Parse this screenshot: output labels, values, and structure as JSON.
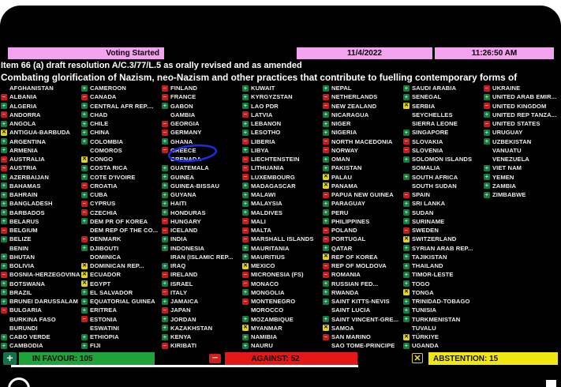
{
  "header": {
    "status": "Voting Started",
    "date": "11/4/2022",
    "time": "11:26:50 AM",
    "item_line": "Item 66 (a) draft resolution A/C.3/77/L.5 as orally revised and as amended",
    "title_line": "Combating glorification of Nazism, neo-Nazism and other practices that contribute to fuelling contemporary forms of"
  },
  "annotation": {
    "circled_country": "GREECE",
    "color": "#1c2be0"
  },
  "summary": {
    "in_favour_label": "IN FAVOUR: 105",
    "against_label": "AGAINST: 52",
    "abstention_label": "ABSTENTION: 15",
    "in_favour_count": 105,
    "against_count": 52,
    "abstention_count": 15,
    "plus_glyph": "+",
    "minus_glyph": "−",
    "cross_glyph": "✕"
  },
  "colors": {
    "topbar_pink": "#f2a3ee",
    "favour_green": "#1fa339",
    "against_red": "#e51717",
    "abstain_yellow": "#f0e612",
    "mark_green": "#157a40",
    "mark_red": "#c11d1d",
    "mark_yellow": "#e3d416"
  },
  "votes": {
    "legend": {
      "Y": "in favour",
      "N": "against",
      "A": "abstention",
      "": "not voting"
    },
    "columns": [
      [
        {
          "name": "AFGHANISTAN",
          "vote": ""
        },
        {
          "name": "ALBANIA",
          "vote": "N"
        },
        {
          "name": "ALGERIA",
          "vote": "Y"
        },
        {
          "name": "ANDORRA",
          "vote": "N"
        },
        {
          "name": "ANGOLA",
          "vote": "Y"
        },
        {
          "name": "ANTIGUA-BARBUDA",
          "vote": "A"
        },
        {
          "name": "ARGENTINA",
          "vote": "Y"
        },
        {
          "name": "ARMENIA",
          "vote": "Y"
        },
        {
          "name": "AUSTRALIA",
          "vote": "N"
        },
        {
          "name": "AUSTRIA",
          "vote": "N"
        },
        {
          "name": "AZERBAIJAN",
          "vote": "Y"
        },
        {
          "name": "BAHAMAS",
          "vote": "Y"
        },
        {
          "name": "BAHRAIN",
          "vote": "Y"
        },
        {
          "name": "BANGLADESH",
          "vote": "Y"
        },
        {
          "name": "BARBADOS",
          "vote": "Y"
        },
        {
          "name": "BELARUS",
          "vote": "Y"
        },
        {
          "name": "BELGIUM",
          "vote": "N"
        },
        {
          "name": "BELIZE",
          "vote": "Y"
        },
        {
          "name": "BENIN",
          "vote": ""
        },
        {
          "name": "BHUTAN",
          "vote": "Y"
        },
        {
          "name": "BOLIVIA",
          "vote": "Y"
        },
        {
          "name": "BOSNIA-HERZEGOVINA",
          "vote": "N"
        },
        {
          "name": "BOTSWANA",
          "vote": "Y"
        },
        {
          "name": "BRAZIL",
          "vote": "Y"
        },
        {
          "name": "BRUNEI DARUSSALAM",
          "vote": "Y"
        },
        {
          "name": "BULGARIA",
          "vote": "N"
        },
        {
          "name": "BURKINA FASO",
          "vote": ""
        },
        {
          "name": "BURUNDI",
          "vote": ""
        },
        {
          "name": "CABO VERDE",
          "vote": "Y"
        },
        {
          "name": "CAMBODIA",
          "vote": "Y"
        }
      ],
      [
        {
          "name": "CAMEROON",
          "vote": "Y"
        },
        {
          "name": "CANADA",
          "vote": "N"
        },
        {
          "name": "CENTRAL AFR REP....",
          "vote": "Y"
        },
        {
          "name": "CHAD",
          "vote": "Y"
        },
        {
          "name": "CHILE",
          "vote": "Y"
        },
        {
          "name": "CHINA",
          "vote": "Y"
        },
        {
          "name": "COLOMBIA",
          "vote": "Y"
        },
        {
          "name": "COMOROS",
          "vote": ""
        },
        {
          "name": "CONGO",
          "vote": "A"
        },
        {
          "name": "COSTA RICA",
          "vote": "Y"
        },
        {
          "name": "COTE D'IVOIRE",
          "vote": "Y"
        },
        {
          "name": "CROATIA",
          "vote": "N"
        },
        {
          "name": "CUBA",
          "vote": "Y"
        },
        {
          "name": "CYPRUS",
          "vote": "N"
        },
        {
          "name": "CZECHIA",
          "vote": "N"
        },
        {
          "name": "DEM PR OF KOREA",
          "vote": "Y"
        },
        {
          "name": "DEM REP OF THE CO...",
          "vote": ""
        },
        {
          "name": "DENMARK",
          "vote": "N"
        },
        {
          "name": "DJIBOUTI",
          "vote": "Y"
        },
        {
          "name": "DOMINICA",
          "vote": ""
        },
        {
          "name": "DOMINICAN REP...",
          "vote": "A"
        },
        {
          "name": "ECUADOR",
          "vote": "A"
        },
        {
          "name": "EGYPT",
          "vote": "A"
        },
        {
          "name": "EL SALVADOR",
          "vote": "Y"
        },
        {
          "name": "EQUATORIAL GUINEA",
          "vote": "Y"
        },
        {
          "name": "ERITREA",
          "vote": "Y"
        },
        {
          "name": "ESTONIA",
          "vote": "N"
        },
        {
          "name": "ESWATINI",
          "vote": ""
        },
        {
          "name": "ETHIOPIA",
          "vote": "Y"
        },
        {
          "name": "FIJI",
          "vote": "Y"
        }
      ],
      [
        {
          "name": "FINLAND",
          "vote": "N"
        },
        {
          "name": "FRANCE",
          "vote": "N"
        },
        {
          "name": "GABON",
          "vote": "Y"
        },
        {
          "name": "GAMBIA",
          "vote": ""
        },
        {
          "name": "GEORGIA",
          "vote": "N"
        },
        {
          "name": "GERMANY",
          "vote": "N"
        },
        {
          "name": "GHANA",
          "vote": "Y"
        },
        {
          "name": "GREECE",
          "vote": "N"
        },
        {
          "name": "GRENADA",
          "vote": ""
        },
        {
          "name": "GUATEMALA",
          "vote": "Y"
        },
        {
          "name": "GUINEA",
          "vote": "Y"
        },
        {
          "name": "GUINEA-BISSAU",
          "vote": "Y"
        },
        {
          "name": "GUYANA",
          "vote": "Y"
        },
        {
          "name": "HAITI",
          "vote": "Y"
        },
        {
          "name": "HONDURAS",
          "vote": "Y"
        },
        {
          "name": "HUNGARY",
          "vote": "N"
        },
        {
          "name": "ICELAND",
          "vote": "N"
        },
        {
          "name": "INDIA",
          "vote": "Y"
        },
        {
          "name": "INDONESIA",
          "vote": "Y"
        },
        {
          "name": "IRAN (ISLAMIC REP...",
          "vote": ""
        },
        {
          "name": "IRAQ",
          "vote": "Y"
        },
        {
          "name": "IRELAND",
          "vote": "N"
        },
        {
          "name": "ISRAEL",
          "vote": "Y"
        },
        {
          "name": "ITALY",
          "vote": "N"
        },
        {
          "name": "JAMAICA",
          "vote": "Y"
        },
        {
          "name": "JAPAN",
          "vote": "N"
        },
        {
          "name": "JORDAN",
          "vote": "Y"
        },
        {
          "name": "KAZAKHSTAN",
          "vote": "Y"
        },
        {
          "name": "KENYA",
          "vote": "Y"
        },
        {
          "name": "KIRIBATI",
          "vote": "N"
        }
      ],
      [
        {
          "name": "KUWAIT",
          "vote": "Y"
        },
        {
          "name": "KYRGYZSTAN",
          "vote": "Y"
        },
        {
          "name": "LAO PDR",
          "vote": "Y"
        },
        {
          "name": "LATVIA",
          "vote": "N"
        },
        {
          "name": "LEBANON",
          "vote": "Y"
        },
        {
          "name": "LESOTHO",
          "vote": "Y"
        },
        {
          "name": "LIBERIA",
          "vote": "N"
        },
        {
          "name": "LIBYA",
          "vote": "Y"
        },
        {
          "name": "LIECHTENSTEIN",
          "vote": "N"
        },
        {
          "name": "LITHUANIA",
          "vote": "N"
        },
        {
          "name": "LUXEMBOURG",
          "vote": "N"
        },
        {
          "name": "MADAGASCAR",
          "vote": "Y"
        },
        {
          "name": "MALAWI",
          "vote": "Y"
        },
        {
          "name": "MALAYSIA",
          "vote": "Y"
        },
        {
          "name": "MALDIVES",
          "vote": "Y"
        },
        {
          "name": "MALI",
          "vote": "N"
        },
        {
          "name": "MALTA",
          "vote": "N"
        },
        {
          "name": "MARSHALL ISLANDS",
          "vote": "N"
        },
        {
          "name": "MAURITANIA",
          "vote": "Y"
        },
        {
          "name": "MAURITIUS",
          "vote": "Y"
        },
        {
          "name": "MEXICO",
          "vote": "A"
        },
        {
          "name": "MICRONESIA (FS)",
          "vote": "N"
        },
        {
          "name": "MONACO",
          "vote": "N"
        },
        {
          "name": "MONGOLIA",
          "vote": "Y"
        },
        {
          "name": "MONTENEGRO",
          "vote": "N"
        },
        {
          "name": "MOROCCO",
          "vote": ""
        },
        {
          "name": "MOZAMBIQUE",
          "vote": "Y"
        },
        {
          "name": "MYANMAR",
          "vote": "A"
        },
        {
          "name": "NAMIBIA",
          "vote": "Y"
        },
        {
          "name": "NAURU",
          "vote": "Y"
        }
      ],
      [
        {
          "name": "NEPAL",
          "vote": "Y"
        },
        {
          "name": "NETHERLANDS",
          "vote": "N"
        },
        {
          "name": "NEW ZEALAND",
          "vote": "N"
        },
        {
          "name": "NICARAGUA",
          "vote": "Y"
        },
        {
          "name": "NIGER",
          "vote": "Y"
        },
        {
          "name": "NIGERIA",
          "vote": "Y"
        },
        {
          "name": "NORTH MACEDONIA",
          "vote": "N"
        },
        {
          "name": "NORWAY",
          "vote": "N"
        },
        {
          "name": "OMAN",
          "vote": "Y"
        },
        {
          "name": "PAKISTAN",
          "vote": "Y"
        },
        {
          "name": "PALAU",
          "vote": "A"
        },
        {
          "name": "PANAMA",
          "vote": "A"
        },
        {
          "name": "PAPUA NEW GUINEA",
          "vote": "N"
        },
        {
          "name": "PARAGUAY",
          "vote": "Y"
        },
        {
          "name": "PERU",
          "vote": "Y"
        },
        {
          "name": "PHILIPPINES",
          "vote": "Y"
        },
        {
          "name": "POLAND",
          "vote": "N"
        },
        {
          "name": "PORTUGAL",
          "vote": "N"
        },
        {
          "name": "QATAR",
          "vote": "Y"
        },
        {
          "name": "REP OF KOREA",
          "vote": "A"
        },
        {
          "name": "REP OF MOLDOVA",
          "vote": "N"
        },
        {
          "name": "ROMANIA",
          "vote": "N"
        },
        {
          "name": "RUSSIAN FED...",
          "vote": "Y"
        },
        {
          "name": "RWANDA",
          "vote": "Y"
        },
        {
          "name": "SAINT KITTS-NEVIS",
          "vote": "Y"
        },
        {
          "name": "SAINT LUCIA",
          "vote": ""
        },
        {
          "name": "SAINT VINCENT-GRE...",
          "vote": "Y"
        },
        {
          "name": "SAMOA",
          "vote": "A"
        },
        {
          "name": "SAN MARINO",
          "vote": "N"
        },
        {
          "name": "SAO TOME-PRINCIPE",
          "vote": ""
        }
      ],
      [
        {
          "name": "SAUDI ARABIA",
          "vote": "Y"
        },
        {
          "name": "SENEGAL",
          "vote": "Y"
        },
        {
          "name": "SERBIA",
          "vote": "A"
        },
        {
          "name": "SEYCHELLES",
          "vote": ""
        },
        {
          "name": "SIERRA LEONE",
          "vote": ""
        },
        {
          "name": "SINGAPORE",
          "vote": "Y"
        },
        {
          "name": "SLOVAKIA",
          "vote": "N"
        },
        {
          "name": "SLOVENIA",
          "vote": "N"
        },
        {
          "name": "SOLOMON ISLANDS",
          "vote": "Y"
        },
        {
          "name": "SOMALIA",
          "vote": ""
        },
        {
          "name": "SOUTH AFRICA",
          "vote": "Y"
        },
        {
          "name": "SOUTH SUDAN",
          "vote": ""
        },
        {
          "name": "SPAIN",
          "vote": "N"
        },
        {
          "name": "SRI LANKA",
          "vote": "Y"
        },
        {
          "name": "SUDAN",
          "vote": "Y"
        },
        {
          "name": "SURINAME",
          "vote": "Y"
        },
        {
          "name": "SWEDEN",
          "vote": "N"
        },
        {
          "name": "SWITZERLAND",
          "vote": "A"
        },
        {
          "name": "SYRIAN ARAB REP...",
          "vote": "Y"
        },
        {
          "name": "TAJIKISTAN",
          "vote": "Y"
        },
        {
          "name": "THAILAND",
          "vote": "Y"
        },
        {
          "name": "TIMOR-LESTE",
          "vote": "Y"
        },
        {
          "name": "TOGO",
          "vote": "Y"
        },
        {
          "name": "TONGA",
          "vote": "A"
        },
        {
          "name": "TRINIDAD-TOBAGO",
          "vote": "Y"
        },
        {
          "name": "TUNISIA",
          "vote": "Y"
        },
        {
          "name": "TURKMENISTAN",
          "vote": "Y"
        },
        {
          "name": "TUVALU",
          "vote": ""
        },
        {
          "name": "TÜRKIYE",
          "vote": "A"
        },
        {
          "name": "UGANDA",
          "vote": "Y"
        }
      ],
      [
        {
          "name": "UKRAINE",
          "vote": "N"
        },
        {
          "name": "UNITED ARAB EMIR...",
          "vote": "Y"
        },
        {
          "name": "UNITED KINGDOM",
          "vote": "N"
        },
        {
          "name": "UNITED REP TANZA...",
          "vote": "Y"
        },
        {
          "name": "UNITED STATES",
          "vote": "N"
        },
        {
          "name": "URUGUAY",
          "vote": "Y"
        },
        {
          "name": "UZBEKISTAN",
          "vote": "Y"
        },
        {
          "name": "VANUATU",
          "vote": ""
        },
        {
          "name": "VENEZUELA",
          "vote": ""
        },
        {
          "name": "VIET NAM",
          "vote": "Y"
        },
        {
          "name": "YEMEN",
          "vote": "Y"
        },
        {
          "name": "ZAMBIA",
          "vote": "Y"
        },
        {
          "name": "ZIMBABWE",
          "vote": "Y"
        }
      ]
    ]
  }
}
